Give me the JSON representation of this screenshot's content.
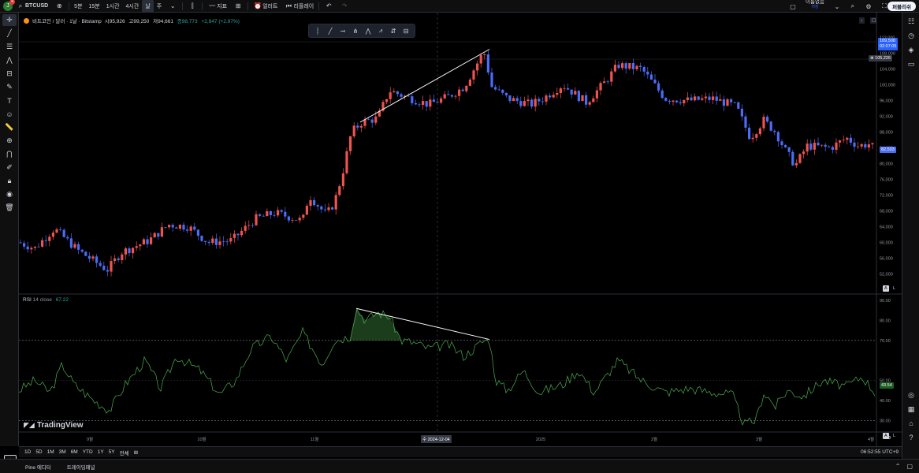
{
  "toolbar": {
    "avatar_letter": "J",
    "notification_count": "4",
    "symbol": "BTCUSD",
    "intervals": [
      "5분",
      "15분",
      "1시간",
      "4시간"
    ],
    "interval_current": "날",
    "interval_more": "주",
    "indicators_label": "지표",
    "alert_label": "얼러트",
    "replay_label": "리플레이",
    "layout_name": "이름없음",
    "layout_sub": "저장",
    "publish_label": "퍼블리쉬"
  },
  "legend": {
    "title": "비트코인 / 달러 · 1날 · Bitstamp",
    "open": "시95,926",
    "high": "고99,250",
    "low": "저94,661",
    "close": "종98,773",
    "change": "+2,847 (+2.97%)"
  },
  "rsi_legend": {
    "name": "RSI",
    "params": "14 close",
    "value": "67.22"
  },
  "price_axis": {
    "ticks": [
      "112,000",
      "108,000",
      "104,000",
      "100,000",
      "96,000",
      "92,000",
      "88,000",
      "84,000",
      "80,000",
      "76,000",
      "72,000",
      "68,000",
      "64,000",
      "60,000",
      "56,000",
      "52,000"
    ],
    "current_price": "109,508",
    "current_time": "02:07:05",
    "crosshair_price": "105,226",
    "last_price": "82,503",
    "scale_auto": "A",
    "scale_log": "L"
  },
  "rsi_axis": {
    "ticks": [
      "90.00",
      "80.00",
      "70.00",
      "50.00",
      "40.00",
      "30.00"
    ],
    "current_value": "43.54",
    "scale_auto": "A",
    "scale_log": "L"
  },
  "time_axis": {
    "ticks": [
      "9월",
      "10월",
      "11월",
      "2025",
      "2월",
      "3월",
      "4월"
    ],
    "crosshair": "수 2024-12-04"
  },
  "timeframes": [
    "1D",
    "5D",
    "1M",
    "3M",
    "6M",
    "YTD",
    "1Y",
    "5Y",
    "전체"
  ],
  "clock": "06:52:55 UTC+9",
  "brand": "TradingView",
  "bottom_panels": [
    "Pine 에디터",
    "트레이딩패널"
  ],
  "colors": {
    "up": "#ef5350",
    "down": "#4a6cf7",
    "rsi_line": "#4caf50",
    "trendline": "#ffffff",
    "crosshair_label": "#2962ff"
  }
}
